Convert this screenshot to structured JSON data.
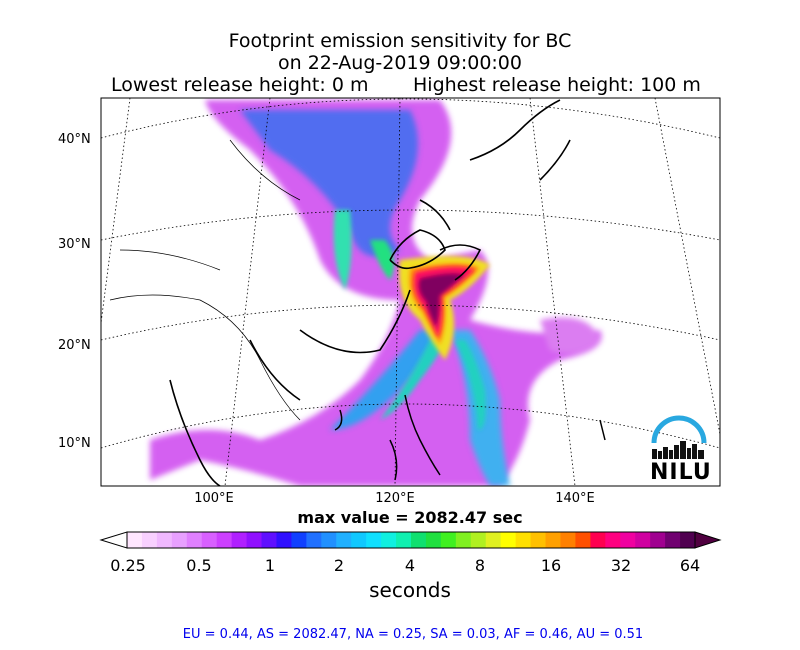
{
  "title": {
    "line1": "Footprint emission sensitivity for BC",
    "line2": "on 22-Aug-2019 09:00:00",
    "lowest": "Lowest release height: 0 m",
    "highest": "Highest release height: 100 m"
  },
  "map": {
    "lat_labels": [
      "40°N",
      "30°N",
      "20°N",
      "10°N"
    ],
    "lon_labels": [
      "100°E",
      "120°E",
      "140°E"
    ],
    "max_value": "max value = 2082.47 sec"
  },
  "colorbar": {
    "ticks": [
      "0.25",
      "0.5",
      "1",
      "2",
      "4",
      "8",
      "16",
      "32",
      "64"
    ],
    "label": "seconds"
  },
  "regions": "EU = 0.44,  AS = 2082.47,  NA = 0.25,  SA = 0.03,  AF = 0.46,  AU = 0.51",
  "logo": {
    "text": "NILU",
    "arc_color": "#29a8e0"
  }
}
